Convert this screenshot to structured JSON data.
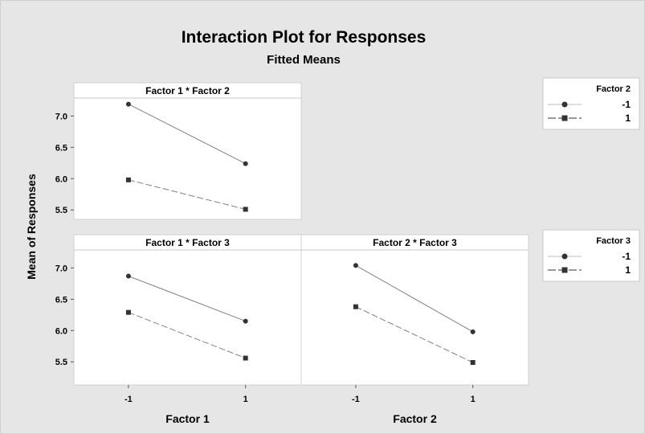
{
  "chart_data": {
    "type": "line",
    "title": "Interaction Plot for Responses",
    "subtitle": "Fitted Means",
    "ylabel": "Mean of Responses",
    "ylim": [
      5.4,
      7.3
    ],
    "yticks": [
      "7.0",
      "6.5",
      "6.0",
      "5.5"
    ],
    "colors": {
      "background": "#e6e6e6",
      "panel": "#ffffff",
      "series_line": "#808080",
      "marker": "#333333"
    },
    "panels": [
      {
        "id": "f1f2",
        "title": "Factor 1 * Factor 2",
        "x": [
          "-1",
          "1"
        ],
        "xlabel": "Factor 1",
        "legend": "Factor 2",
        "series": [
          {
            "name": "-1",
            "values": [
              7.19,
              6.24
            ]
          },
          {
            "name": "1",
            "values": [
              5.98,
              5.51
            ]
          }
        ]
      },
      {
        "id": "f1f3",
        "title": "Factor 1 * Factor 3",
        "x": [
          "-1",
          "1"
        ],
        "xlabel": "Factor 1",
        "legend": "Factor 3",
        "series": [
          {
            "name": "-1",
            "values": [
              6.87,
              6.15
            ]
          },
          {
            "name": "1",
            "values": [
              6.29,
              5.56
            ]
          }
        ]
      },
      {
        "id": "f2f3",
        "title": "Factor 2 * Factor 3",
        "x": [
          "-1",
          "1"
        ],
        "xlabel": "Factor 2",
        "legend": "Factor 3",
        "series": [
          {
            "name": "-1",
            "values": [
              7.04,
              5.98
            ]
          },
          {
            "name": "1",
            "values": [
              6.38,
              5.49
            ]
          }
        ]
      }
    ],
    "legends": [
      {
        "title": "Factor 2",
        "items": [
          {
            "label": "-1",
            "marker": "circle",
            "line": "solid"
          },
          {
            "label": "1",
            "marker": "square",
            "line": "dashed"
          }
        ]
      },
      {
        "title": "Factor 3",
        "items": [
          {
            "label": "-1",
            "marker": "circle",
            "line": "solid"
          },
          {
            "label": "1",
            "marker": "square",
            "line": "dashed"
          }
        ]
      }
    ]
  }
}
